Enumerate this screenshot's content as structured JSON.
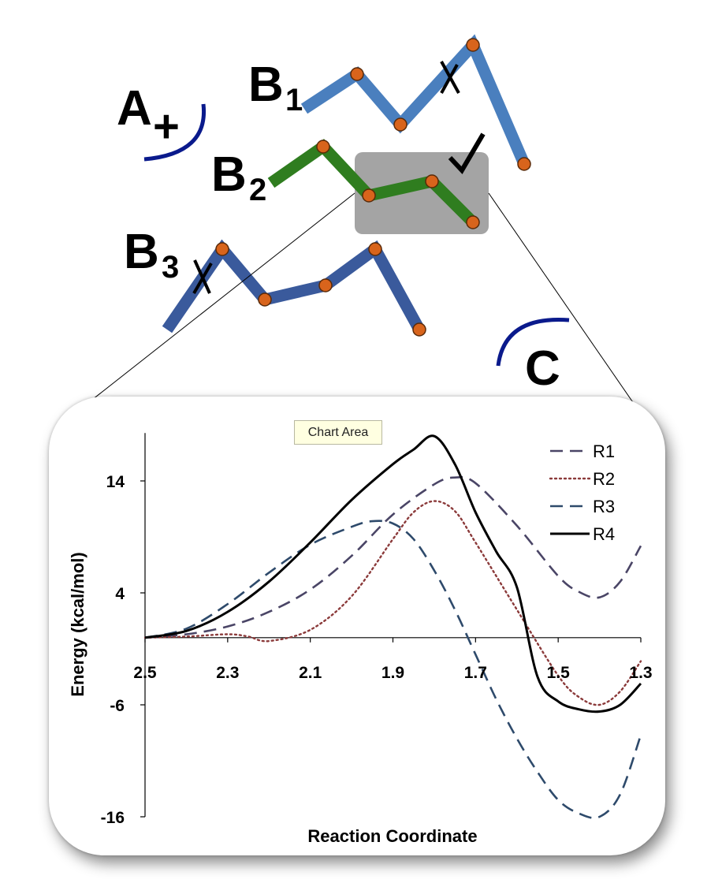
{
  "diagram": {
    "labels": {
      "A": "A",
      "A_charge": "+",
      "B1": "B",
      "B1_sub": "1",
      "B2": "B",
      "B2_sub": "2",
      "B3": "B",
      "B3_sub": "3",
      "C": "C"
    },
    "chain_colors": {
      "B1": "#4a7fbe",
      "B2": "#2f7d1f",
      "B3": "#3a5a9c"
    },
    "node_color": "#d8641c",
    "arc_color": "#0a1a8c",
    "highlight_color": "#9a9a9a"
  },
  "tooltip": {
    "text": "Chart Area"
  },
  "chart_data": {
    "type": "line",
    "xlabel": "Reaction Coordinate",
    "ylabel": "Energy (kcal/mol)",
    "xlim": [
      2.5,
      1.3
    ],
    "ylim": [
      -16,
      18
    ],
    "x_reversed": true,
    "x_ticks": [
      "2.5",
      "2.3",
      "2.1",
      "1.9",
      "1.7",
      "1.5",
      "1.3"
    ],
    "y_ticks": [
      "14",
      "4",
      "-6",
      "-16"
    ],
    "legend_position": "top-right",
    "series": [
      {
        "name": "R1",
        "color": "#4a4566",
        "style": "dashed",
        "x": [
          2.5,
          2.4,
          2.3,
          2.2,
          2.1,
          2.0,
          1.9,
          1.8,
          1.75,
          1.7,
          1.6,
          1.5,
          1.45,
          1.4,
          1.35,
          1.3
        ],
        "y": [
          0,
          0.3,
          1,
          2.3,
          4.3,
          7.3,
          11,
          13.7,
          14.3,
          13.8,
          10,
          5.5,
          4.1,
          3.6,
          5,
          8.2
        ]
      },
      {
        "name": "R2",
        "color": "#8b3a3a",
        "style": "dotted",
        "x": [
          2.5,
          2.4,
          2.3,
          2.25,
          2.2,
          2.1,
          2.0,
          1.9,
          1.85,
          1.8,
          1.75,
          1.7,
          1.6,
          1.5,
          1.45,
          1.4,
          1.35,
          1.3
        ],
        "y": [
          0,
          0.1,
          0.3,
          0.1,
          -0.3,
          0.7,
          3.7,
          8.8,
          11.2,
          12.2,
          11.3,
          8.5,
          2.5,
          -3.4,
          -5.3,
          -6,
          -4.8,
          -2.1
        ]
      },
      {
        "name": "R3",
        "color": "#2e4a6b",
        "style": "dashed",
        "x": [
          2.5,
          2.4,
          2.3,
          2.2,
          2.1,
          2.0,
          1.95,
          1.9,
          1.85,
          1.8,
          1.75,
          1.7,
          1.65,
          1.6,
          1.55,
          1.5,
          1.45,
          1.4,
          1.35,
          1.3
        ],
        "y": [
          0,
          0.8,
          3,
          5.8,
          8.3,
          9.9,
          10.4,
          10.2,
          8.8,
          6,
          2.5,
          -1.5,
          -5.5,
          -9,
          -12,
          -14.5,
          -15.7,
          -16,
          -14,
          -8.7
        ]
      },
      {
        "name": "R4",
        "color": "#000000",
        "style": "solid",
        "x": [
          2.5,
          2.4,
          2.3,
          2.2,
          2.1,
          2.0,
          1.9,
          1.85,
          1.8,
          1.75,
          1.7,
          1.65,
          1.6,
          1.55,
          1.5,
          1.45,
          1.4,
          1.35,
          1.3
        ],
        "y": [
          0,
          0.6,
          2.3,
          5,
          8.5,
          12.3,
          15.5,
          16.8,
          18,
          15.5,
          11.2,
          7.7,
          4.5,
          -3.5,
          -5.7,
          -6.4,
          -6.6,
          -6,
          -4.1
        ]
      }
    ]
  }
}
